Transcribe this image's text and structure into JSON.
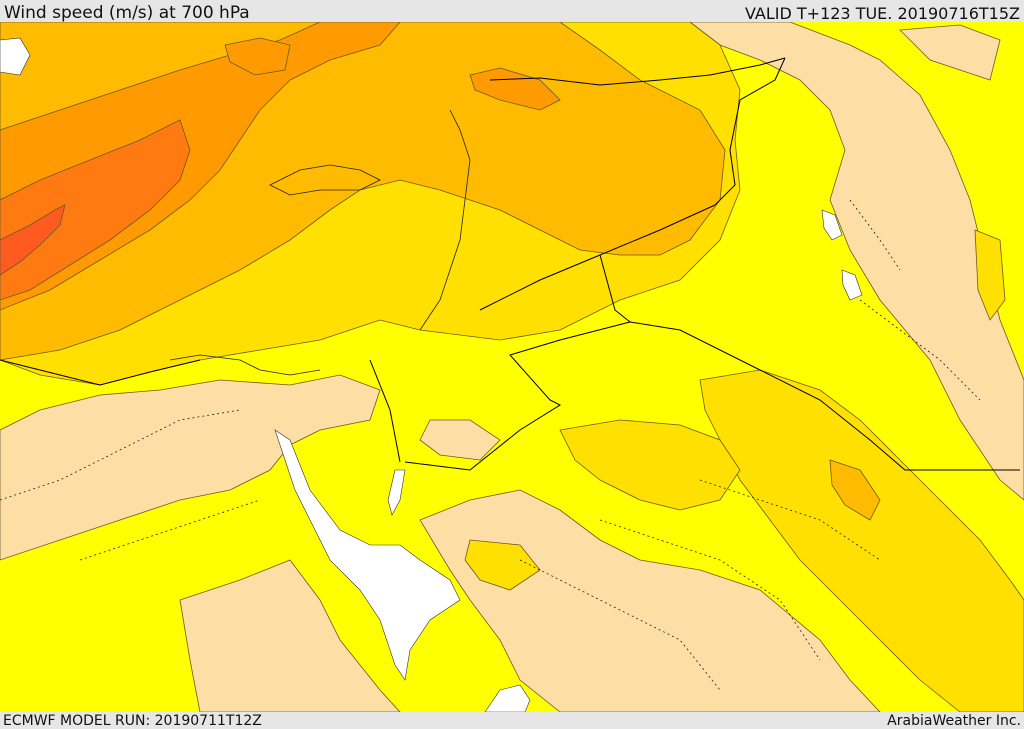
{
  "header": {
    "title": "Wind speed (m/s) at 700 hPa",
    "valid_time": "VALID T+123 TUE. 20190716T15Z"
  },
  "footer": {
    "model_run": "ECMWF MODEL RUN: 20190711T12Z",
    "credit": "ArabiaWeather Inc."
  },
  "map": {
    "variable": "wind speed",
    "units": "m/s",
    "level": "700 hPa",
    "palette": {
      "water_no_data": "#ffffff",
      "lowest": "#fddfa6",
      "low": "#ffff00",
      "moderate": "#ffe000",
      "elevated": "#ffbb00",
      "high": "#ff9a00",
      "very_high": "#ff7a10",
      "highest": "#ff5a20",
      "contour": "#6b5a2a",
      "border": "#000000"
    }
  }
}
